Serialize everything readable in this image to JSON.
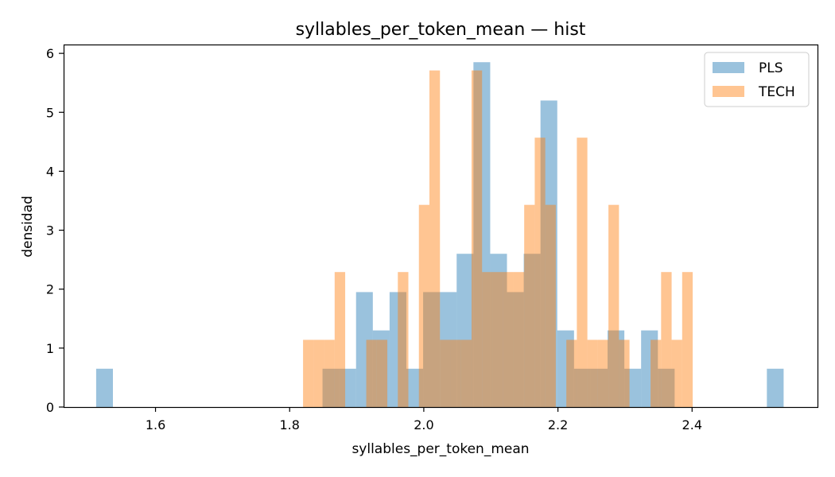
{
  "chart_data": {
    "type": "bar",
    "subtype": "histogram",
    "title": "syllables_per_token_mean — hist",
    "xlabel": "syllables_per_token_mean",
    "ylabel": "densidad",
    "xlim": [
      1.463,
      2.587
    ],
    "ylim": [
      0,
      6.15
    ],
    "xticks": [
      1.6,
      1.8,
      2.0,
      2.2,
      2.4
    ],
    "yticks": [
      0,
      1,
      2,
      3,
      4,
      5,
      6
    ],
    "grid": false,
    "legend_position": "top-right",
    "series": [
      {
        "name": "PLS",
        "color": "#1f77b4",
        "alpha": 0.45,
        "bins": [
          [
            1.5115,
            1.5365,
            0.65
          ],
          [
            1.849,
            1.874,
            0.65
          ],
          [
            1.874,
            1.899,
            0.65
          ],
          [
            1.899,
            1.924,
            1.95
          ],
          [
            1.924,
            1.949,
            1.3
          ],
          [
            1.949,
            1.974,
            1.95
          ],
          [
            1.974,
            1.999,
            0.65
          ],
          [
            1.999,
            2.024,
            1.95
          ],
          [
            2.024,
            2.049,
            1.95
          ],
          [
            2.049,
            2.074,
            2.6
          ],
          [
            2.074,
            2.099,
            5.85
          ],
          [
            2.099,
            2.124,
            2.6
          ],
          [
            2.124,
            2.149,
            1.95
          ],
          [
            2.149,
            2.174,
            2.6
          ],
          [
            2.174,
            2.199,
            5.2
          ],
          [
            2.199,
            2.224,
            1.3
          ],
          [
            2.224,
            2.249,
            0.65
          ],
          [
            2.249,
            2.274,
            0.65
          ],
          [
            2.274,
            2.299,
            1.3
          ],
          [
            2.299,
            2.324,
            0.65
          ],
          [
            2.324,
            2.349,
            1.3
          ],
          [
            2.349,
            2.374,
            0.65
          ],
          [
            2.5115,
            2.5365,
            0.65
          ]
        ]
      },
      {
        "name": "TECH",
        "color": "#ff7f0e",
        "alpha": 0.45,
        "bins": [
          [
            1.82,
            1.8357,
            1.14
          ],
          [
            1.8357,
            1.8514,
            1.14
          ],
          [
            1.8514,
            1.8671,
            1.14
          ],
          [
            1.8671,
            1.8828,
            2.29
          ],
          [
            1.9142,
            1.9299,
            1.14
          ],
          [
            1.9299,
            1.9456,
            1.14
          ],
          [
            1.9613,
            1.977,
            2.29
          ],
          [
            1.977,
            1.9927,
            0.0
          ],
          [
            1.9927,
            2.0084,
            3.43
          ],
          [
            2.0084,
            2.0241,
            5.71
          ],
          [
            2.0241,
            2.0398,
            1.14
          ],
          [
            2.0398,
            2.0555,
            1.14
          ],
          [
            2.0555,
            2.0712,
            1.14
          ],
          [
            2.0712,
            2.0869,
            5.71
          ],
          [
            2.0869,
            2.1026,
            2.29
          ],
          [
            2.1026,
            2.1183,
            2.29
          ],
          [
            2.1183,
            2.134,
            2.29
          ],
          [
            2.134,
            2.1497,
            2.29
          ],
          [
            2.1497,
            2.1654,
            3.43
          ],
          [
            2.1654,
            2.1811,
            4.57
          ],
          [
            2.1811,
            2.1968,
            3.43
          ],
          [
            2.1968,
            2.2125,
            0.0
          ],
          [
            2.2125,
            2.2282,
            1.14
          ],
          [
            2.2282,
            2.2439,
            4.57
          ],
          [
            2.2439,
            2.2596,
            1.14
          ],
          [
            2.2596,
            2.2753,
            1.14
          ],
          [
            2.2753,
            2.291,
            3.43
          ],
          [
            2.291,
            2.3067,
            1.14
          ],
          [
            2.3381,
            2.3538,
            1.14
          ],
          [
            2.3538,
            2.3695,
            2.29
          ],
          [
            2.3695,
            2.3852,
            1.14
          ],
          [
            2.3852,
            2.4009,
            2.29
          ]
        ]
      }
    ]
  }
}
